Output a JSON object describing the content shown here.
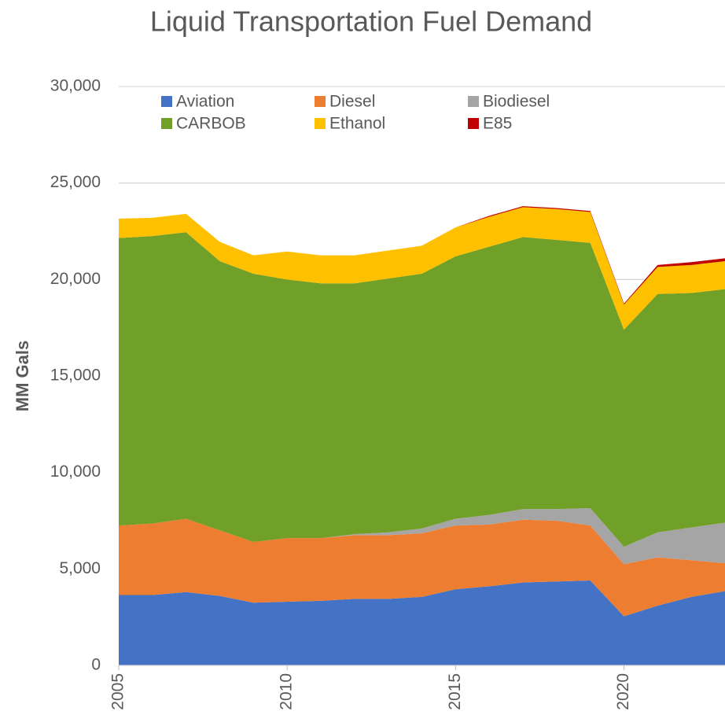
{
  "chart_data": {
    "type": "stacked_area",
    "title": "Liquid Transportation Fuel Demand",
    "y_label": "MM Gals",
    "x": [
      2005,
      2006,
      2007,
      2008,
      2009,
      2010,
      2011,
      2012,
      2013,
      2014,
      2015,
      2016,
      2017,
      2018,
      2019,
      2020,
      2021,
      2022,
      2023
    ],
    "xlim": [
      2005,
      2023
    ],
    "xticks": [
      2005,
      2010,
      2015,
      2020
    ],
    "ylim": [
      0,
      30000
    ],
    "yticks": [
      0,
      {
        "value": 5000,
        "label": "5,000"
      },
      {
        "value": 10000,
        "label": "10,000"
      },
      {
        "value": 15000,
        "label": "15,000"
      },
      {
        "value": 20000,
        "label": "20,000"
      },
      {
        "value": 25000,
        "label": "25,000"
      },
      {
        "value": 30000,
        "label": "30,000"
      }
    ],
    "grid": true,
    "legend": "top",
    "series": [
      {
        "name": "Aviation",
        "color": "#4472c4",
        "values": [
          3650,
          3650,
          3800,
          3600,
          3250,
          3300,
          3350,
          3450,
          3450,
          3550,
          3950,
          4100,
          4300,
          4350,
          4400,
          2550,
          3100,
          3550,
          3850
        ]
      },
      {
        "name": "Diesel",
        "color": "#ed7d31",
        "values": [
          3600,
          3700,
          3800,
          3400,
          3150,
          3300,
          3250,
          3300,
          3300,
          3300,
          3300,
          3200,
          3250,
          3150,
          2850,
          2700,
          2500,
          1900,
          1450
        ]
      },
      {
        "name": "Biodiesel",
        "color": "#a5a5a5",
        "values": [
          0,
          0,
          0,
          0,
          0,
          0,
          0,
          50,
          150,
          250,
          350,
          500,
          550,
          600,
          900,
          900,
          1300,
          1700,
          2100
        ]
      },
      {
        "name": "CARBOB",
        "color": "#70a028",
        "values": [
          14900,
          14900,
          14850,
          13950,
          13900,
          13400,
          13200,
          13000,
          13150,
          13200,
          13600,
          13900,
          14100,
          13950,
          13750,
          11250,
          12350,
          12150,
          12100
        ]
      },
      {
        "name": "Ethanol",
        "color": "#ffc000",
        "values": [
          1000,
          950,
          950,
          1000,
          950,
          1450,
          1450,
          1450,
          1450,
          1450,
          1500,
          1550,
          1550,
          1600,
          1600,
          1300,
          1400,
          1450,
          1450
        ]
      },
      {
        "name": "E85",
        "color": "#c00000",
        "values": [
          0,
          0,
          0,
          0,
          0,
          0,
          0,
          0,
          0,
          0,
          0,
          50,
          50,
          50,
          50,
          50,
          100,
          150,
          150
        ]
      }
    ]
  }
}
